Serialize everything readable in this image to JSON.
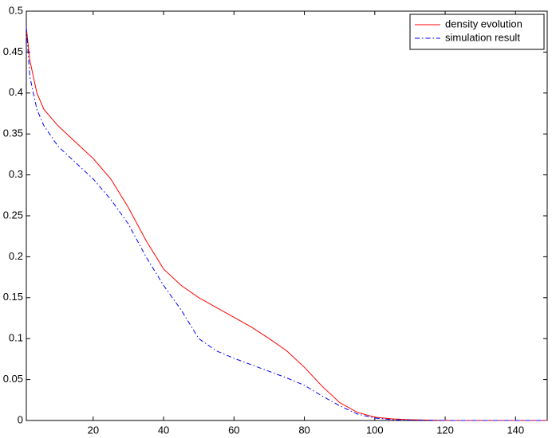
{
  "chart_data": {
    "type": "line",
    "x": [
      1,
      2,
      4,
      6,
      10,
      15,
      20,
      25,
      30,
      35,
      40,
      45,
      50,
      55,
      60,
      65,
      70,
      75,
      80,
      85,
      90,
      95,
      100,
      105,
      110,
      120,
      130,
      149
    ],
    "series": [
      {
        "name": "density evolution",
        "color": "#ff0000",
        "linestyle": "solid",
        "values": [
          0.48,
          0.44,
          0.4,
          0.38,
          0.36,
          0.34,
          0.32,
          0.295,
          0.26,
          0.22,
          0.185,
          0.165,
          0.15,
          0.138,
          0.126,
          0.114,
          0.1,
          0.085,
          0.065,
          0.042,
          0.022,
          0.01,
          0.004,
          0.002,
          0.001,
          0,
          0,
          0
        ]
      },
      {
        "name": "simulation result",
        "color": "#0000ff",
        "linestyle": "dashdot",
        "values": [
          0.48,
          0.42,
          0.38,
          0.36,
          0.335,
          0.315,
          0.295,
          0.27,
          0.24,
          0.2,
          0.165,
          0.135,
          0.1,
          0.085,
          0.076,
          0.068,
          0.06,
          0.052,
          0.043,
          0.03,
          0.018,
          0.008,
          0.003,
          0.001,
          0.0005,
          0,
          0,
          0
        ]
      }
    ],
    "xlim": [
      1,
      149
    ],
    "xticks": [
      20,
      40,
      60,
      80,
      100,
      120,
      140
    ],
    "ylim": [
      0,
      0.5
    ],
    "yticks": [
      0,
      0.05,
      0.1,
      0.15,
      0.2,
      0.25,
      0.3,
      0.35,
      0.4,
      0.45,
      0.5
    ],
    "grid": false,
    "legend": "upper right"
  }
}
